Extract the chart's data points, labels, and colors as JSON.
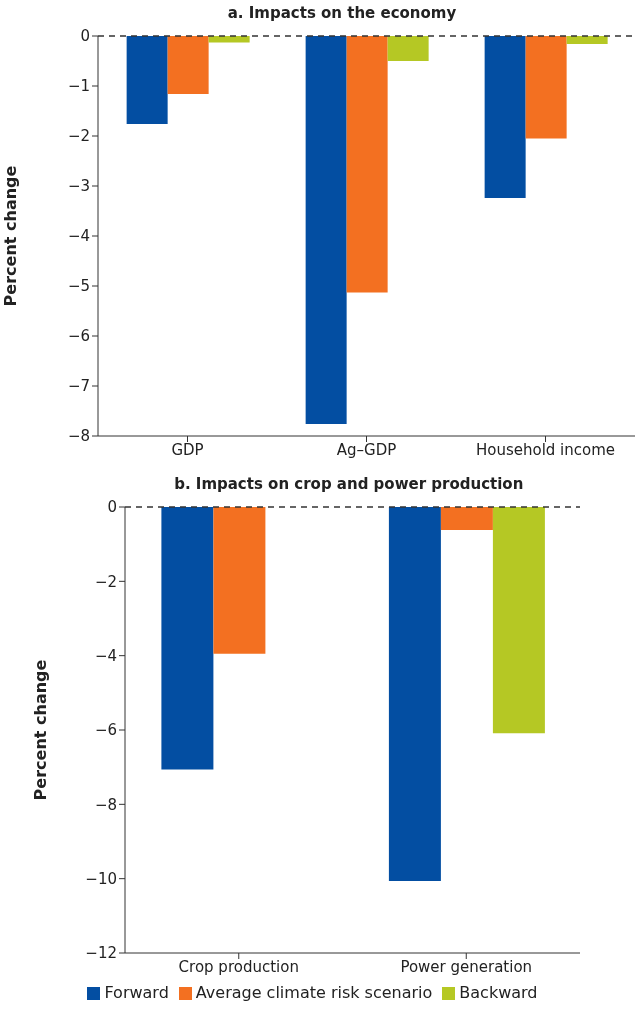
{
  "chart_data": [
    {
      "type": "bar",
      "title": "a. Impacts on the economy",
      "ylabel": "Percent change",
      "categories": [
        "GDP",
        "Ag–GDP",
        "Household income"
      ],
      "series": [
        {
          "color": "#034ea2",
          "values": [
            -1.76,
            -7.76,
            -3.24
          ]
        },
        {
          "color": "#f37021",
          "values": [
            -1.16,
            -5.13,
            -2.05
          ]
        },
        {
          "color": "#b5c824",
          "values": [
            -0.13,
            -0.5,
            -0.16
          ]
        }
      ],
      "ylim": [
        -8,
        0
      ],
      "yticks": [
        -8,
        -7,
        -6,
        -5,
        -4,
        -3,
        -2,
        -1,
        0
      ],
      "grid": false,
      "legend": false,
      "ref_lines": [
        {
          "axis": "y",
          "value": 0,
          "color": "#333333",
          "line_style": "dashed"
        }
      ]
    },
    {
      "type": "bar",
      "title": "b. Impacts on crop and power production",
      "ylabel": "Percent change",
      "categories": [
        "Crop production",
        "Power generation"
      ],
      "series": [
        {
          "name": "Forward",
          "color": "#034ea2",
          "values": [
            -7.06,
            -10.06
          ]
        },
        {
          "name": "Average climate risk scenario",
          "color": "#f37021",
          "values": [
            -3.95,
            -0.62
          ]
        },
        {
          "name": "Backward",
          "color": "#b5c824",
          "values": [
            null,
            -6.09
          ]
        }
      ],
      "ylim": [
        -12,
        0
      ],
      "yticks": [
        -12,
        -10,
        -8,
        -6,
        -4,
        -2,
        0
      ],
      "grid": false,
      "legend": "bottom",
      "ref_lines": [
        {
          "axis": "y",
          "value": 0,
          "color": "#333333",
          "line_style": "dashed"
        }
      ]
    }
  ]
}
